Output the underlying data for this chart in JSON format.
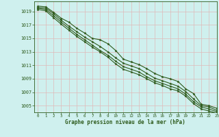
{
  "title": "Graphe pression niveau de la mer (hPa)",
  "background_color": "#cff0ee",
  "grid_color": "#d8e8e8",
  "line_color": "#2d5a1b",
  "xlim": [
    -0.5,
    23
  ],
  "ylim": [
    1004.0,
    1020.5
  ],
  "yticks": [
    1005,
    1007,
    1009,
    1011,
    1013,
    1015,
    1017,
    1019
  ],
  "xticks": [
    0,
    1,
    2,
    3,
    4,
    5,
    6,
    7,
    8,
    9,
    10,
    11,
    12,
    13,
    14,
    15,
    16,
    17,
    18,
    19,
    20,
    21,
    22,
    23
  ],
  "series": [
    [
      1019.8,
      1019.7,
      1018.9,
      1018.0,
      1017.4,
      1016.5,
      1015.8,
      1015.0,
      1014.8,
      1014.2,
      1013.2,
      1011.9,
      1011.5,
      1011.1,
      1010.5,
      1009.8,
      1009.3,
      1009.0,
      1008.6,
      1007.5,
      1006.8,
      1005.2,
      1005.0,
      1004.6
    ],
    [
      1019.6,
      1019.5,
      1018.7,
      1017.7,
      1016.8,
      1016.0,
      1015.2,
      1014.5,
      1013.8,
      1013.0,
      1012.1,
      1011.3,
      1010.9,
      1010.5,
      1009.8,
      1009.1,
      1008.7,
      1008.3,
      1007.9,
      1007.1,
      1006.0,
      1005.0,
      1004.8,
      1004.3
    ],
    [
      1019.5,
      1019.3,
      1018.4,
      1017.4,
      1016.5,
      1015.6,
      1014.8,
      1014.0,
      1013.2,
      1012.5,
      1011.6,
      1010.8,
      1010.4,
      1010.0,
      1009.3,
      1008.7,
      1008.3,
      1007.9,
      1007.5,
      1006.7,
      1005.6,
      1004.8,
      1004.5,
      1004.1
    ],
    [
      1019.3,
      1019.1,
      1018.1,
      1017.1,
      1016.2,
      1015.3,
      1014.5,
      1013.7,
      1013.0,
      1012.2,
      1011.2,
      1010.4,
      1010.0,
      1009.6,
      1009.0,
      1008.4,
      1008.0,
      1007.5,
      1007.2,
      1006.4,
      1005.3,
      1004.5,
      1004.2,
      1003.9
    ]
  ]
}
